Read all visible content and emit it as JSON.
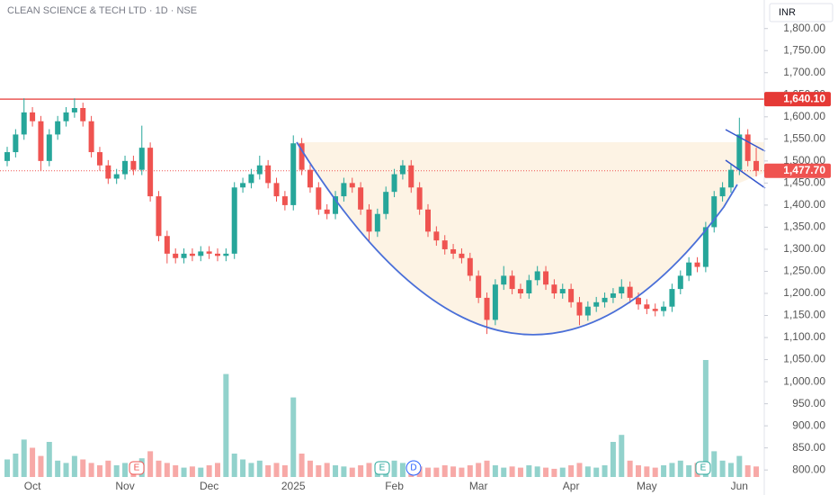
{
  "chart_data": {
    "type": "candlestick",
    "title": "CLEAN SCIENCE & TECH LTD · 1D · NSE",
    "currency": "INR",
    "up_color": "#26a69a",
    "down_color": "#ef5350",
    "categories": [
      null,
      null,
      null,
      "Oct",
      null,
      null,
      null,
      null,
      null,
      null,
      null,
      null,
      null,
      null,
      "Nov",
      null,
      null,
      null,
      null,
      null,
      null,
      null,
      null,
      null,
      "Dec",
      null,
      null,
      null,
      null,
      null,
      null,
      null,
      null,
      null,
      "2025",
      null,
      null,
      null,
      null,
      null,
      null,
      null,
      null,
      null,
      null,
      null,
      "Feb",
      null,
      null,
      null,
      null,
      null,
      null,
      null,
      null,
      null,
      "Mar",
      null,
      null,
      null,
      null,
      null,
      null,
      null,
      null,
      null,
      null,
      "Apr",
      null,
      null,
      null,
      null,
      null,
      null,
      null,
      null,
      "May",
      null,
      null,
      null,
      null,
      null,
      null,
      null,
      null,
      null,
      null,
      "Jun",
      null,
      null
    ],
    "candles": [
      [
        1500,
        1532,
        1488,
        1520
      ],
      [
        1520,
        1572,
        1508,
        1560
      ],
      [
        1560,
        1642,
        1548,
        1610
      ],
      [
        1610,
        1622,
        1578,
        1590
      ],
      [
        1590,
        1602,
        1478,
        1500
      ],
      [
        1500,
        1572,
        1488,
        1560
      ],
      [
        1560,
        1602,
        1548,
        1590
      ],
      [
        1590,
        1622,
        1578,
        1610
      ],
      [
        1610,
        1642,
        1598,
        1620
      ],
      [
        1620,
        1632,
        1578,
        1590
      ],
      [
        1590,
        1602,
        1508,
        1520
      ],
      [
        1520,
        1532,
        1478,
        1490
      ],
      [
        1490,
        1502,
        1448,
        1460
      ],
      [
        1460,
        1482,
        1448,
        1470
      ],
      [
        1470,
        1512,
        1458,
        1500
      ],
      [
        1500,
        1512,
        1468,
        1480
      ],
      [
        1480,
        1580,
        1468,
        1530
      ],
      [
        1530,
        1542,
        1408,
        1420
      ],
      [
        1420,
        1432,
        1318,
        1330
      ],
      [
        1330,
        1342,
        1268,
        1290
      ],
      [
        1290,
        1302,
        1268,
        1280
      ],
      [
        1280,
        1302,
        1268,
        1290
      ],
      [
        1290,
        1302,
        1273,
        1285
      ],
      [
        1285,
        1307,
        1273,
        1295
      ],
      [
        1295,
        1307,
        1278,
        1290
      ],
      [
        1290,
        1302,
        1273,
        1285
      ],
      [
        1285,
        1302,
        1273,
        1290
      ],
      [
        1290,
        1452,
        1278,
        1440
      ],
      [
        1440,
        1462,
        1428,
        1450
      ],
      [
        1450,
        1482,
        1438,
        1470
      ],
      [
        1470,
        1512,
        1458,
        1490
      ],
      [
        1490,
        1502,
        1438,
        1450
      ],
      [
        1450,
        1462,
        1408,
        1420
      ],
      [
        1420,
        1432,
        1388,
        1400
      ],
      [
        1400,
        1558,
        1388,
        1540
      ],
      [
        1540,
        1552,
        1468,
        1480
      ],
      [
        1480,
        1492,
        1428,
        1440
      ],
      [
        1440,
        1452,
        1378,
        1390
      ],
      [
        1390,
        1402,
        1368,
        1380
      ],
      [
        1380,
        1432,
        1368,
        1420
      ],
      [
        1420,
        1462,
        1408,
        1450
      ],
      [
        1450,
        1462,
        1428,
        1440
      ],
      [
        1440,
        1452,
        1378,
        1390
      ],
      [
        1390,
        1402,
        1318,
        1340
      ],
      [
        1340,
        1392,
        1328,
        1380
      ],
      [
        1380,
        1442,
        1368,
        1430
      ],
      [
        1430,
        1482,
        1418,
        1470
      ],
      [
        1470,
        1502,
        1458,
        1490
      ],
      [
        1490,
        1502,
        1428,
        1440
      ],
      [
        1440,
        1452,
        1378,
        1390
      ],
      [
        1390,
        1402,
        1328,
        1340
      ],
      [
        1340,
        1352,
        1308,
        1320
      ],
      [
        1320,
        1332,
        1288,
        1300
      ],
      [
        1300,
        1312,
        1278,
        1290
      ],
      [
        1290,
        1302,
        1268,
        1280
      ],
      [
        1280,
        1292,
        1228,
        1240
      ],
      [
        1240,
        1252,
        1178,
        1190
      ],
      [
        1190,
        1202,
        1108,
        1140
      ],
      [
        1140,
        1232,
        1128,
        1220
      ],
      [
        1220,
        1262,
        1208,
        1240
      ],
      [
        1240,
        1252,
        1198,
        1210
      ],
      [
        1210,
        1222,
        1188,
        1200
      ],
      [
        1200,
        1242,
        1188,
        1230
      ],
      [
        1230,
        1262,
        1218,
        1250
      ],
      [
        1250,
        1262,
        1208,
        1220
      ],
      [
        1220,
        1232,
        1188,
        1200
      ],
      [
        1200,
        1222,
        1188,
        1210
      ],
      [
        1210,
        1222,
        1168,
        1180
      ],
      [
        1180,
        1192,
        1128,
        1150
      ],
      [
        1150,
        1182,
        1138,
        1170
      ],
      [
        1170,
        1192,
        1158,
        1180
      ],
      [
        1180,
        1202,
        1168,
        1190
      ],
      [
        1190,
        1212,
        1178,
        1200
      ],
      [
        1200,
        1232,
        1188,
        1215
      ],
      [
        1215,
        1227,
        1178,
        1190
      ],
      [
        1190,
        1202,
        1163,
        1175
      ],
      [
        1175,
        1187,
        1153,
        1165
      ],
      [
        1165,
        1177,
        1148,
        1160
      ],
      [
        1160,
        1182,
        1148,
        1170
      ],
      [
        1170,
        1222,
        1158,
        1210
      ],
      [
        1210,
        1252,
        1198,
        1240
      ],
      [
        1240,
        1282,
        1228,
        1270
      ],
      [
        1270,
        1282,
        1248,
        1260
      ],
      [
        1260,
        1362,
        1248,
        1350
      ],
      [
        1350,
        1432,
        1338,
        1420
      ],
      [
        1420,
        1452,
        1408,
        1440
      ],
      [
        1440,
        1492,
        1428,
        1480
      ],
      [
        1480,
        1598,
        1468,
        1560
      ],
      [
        1560,
        1572,
        1488,
        1500
      ],
      [
        1500,
        1530,
        1465,
        1477.7
      ]
    ],
    "volumes": [
      15,
      20,
      32,
      25,
      18,
      30,
      14,
      12,
      18,
      15,
      12,
      10,
      14,
      10,
      12,
      10,
      16,
      22,
      14,
      12,
      10,
      8,
      9,
      8,
      10,
      12,
      88,
      20,
      15,
      12,
      14,
      10,
      12,
      10,
      68,
      20,
      14,
      10,
      12,
      10,
      9,
      8,
      10,
      12,
      10,
      10,
      14,
      12,
      10,
      9,
      8,
      8,
      10,
      9,
      8,
      10,
      12,
      14,
      10,
      8,
      9,
      8,
      10,
      9,
      8,
      7,
      8,
      10,
      12,
      9,
      8,
      10,
      30,
      36,
      14,
      10,
      9,
      8,
      10,
      12,
      14,
      10,
      12,
      100,
      22,
      14,
      12,
      18,
      10,
      9
    ],
    "ylim": [
      780,
      1830
    ],
    "yticks": [
      {
        "value": 800,
        "label": "800.00"
      },
      {
        "value": 850,
        "label": "850.00"
      },
      {
        "value": 900,
        "label": "900.00"
      },
      {
        "value": 950,
        "label": "950.00"
      },
      {
        "value": 1000,
        "label": "1,000.00"
      },
      {
        "value": 1050,
        "label": "1,050.00"
      },
      {
        "value": 1100,
        "label": "1,100.00"
      },
      {
        "value": 1150,
        "label": "1,150.00"
      },
      {
        "value": 1200,
        "label": "1,200.00"
      },
      {
        "value": 1250,
        "label": "1,250.00"
      },
      {
        "value": 1300,
        "label": "1,300.00"
      },
      {
        "value": 1350,
        "label": "1,350.00"
      },
      {
        "value": 1400,
        "label": "1,400.00"
      },
      {
        "value": 1450,
        "label": "1,450.00"
      },
      {
        "value": 1500,
        "label": "1,500.00"
      },
      {
        "value": 1550,
        "label": "1,550.00"
      },
      {
        "value": 1600,
        "label": "1,600.00"
      },
      {
        "value": 1650,
        "label": "1,650.00"
      },
      {
        "value": 1700,
        "label": "1,700.00"
      },
      {
        "value": 1750,
        "label": "1,750.00"
      },
      {
        "value": 1800,
        "label": "1,800.00"
      }
    ],
    "resistance": {
      "value": 1640.1,
      "label": "1,640.10"
    },
    "last_price": {
      "value": 1477.7,
      "label": "1,477.70"
    },
    "events": [
      "E",
      "E",
      "D",
      "E"
    ]
  }
}
